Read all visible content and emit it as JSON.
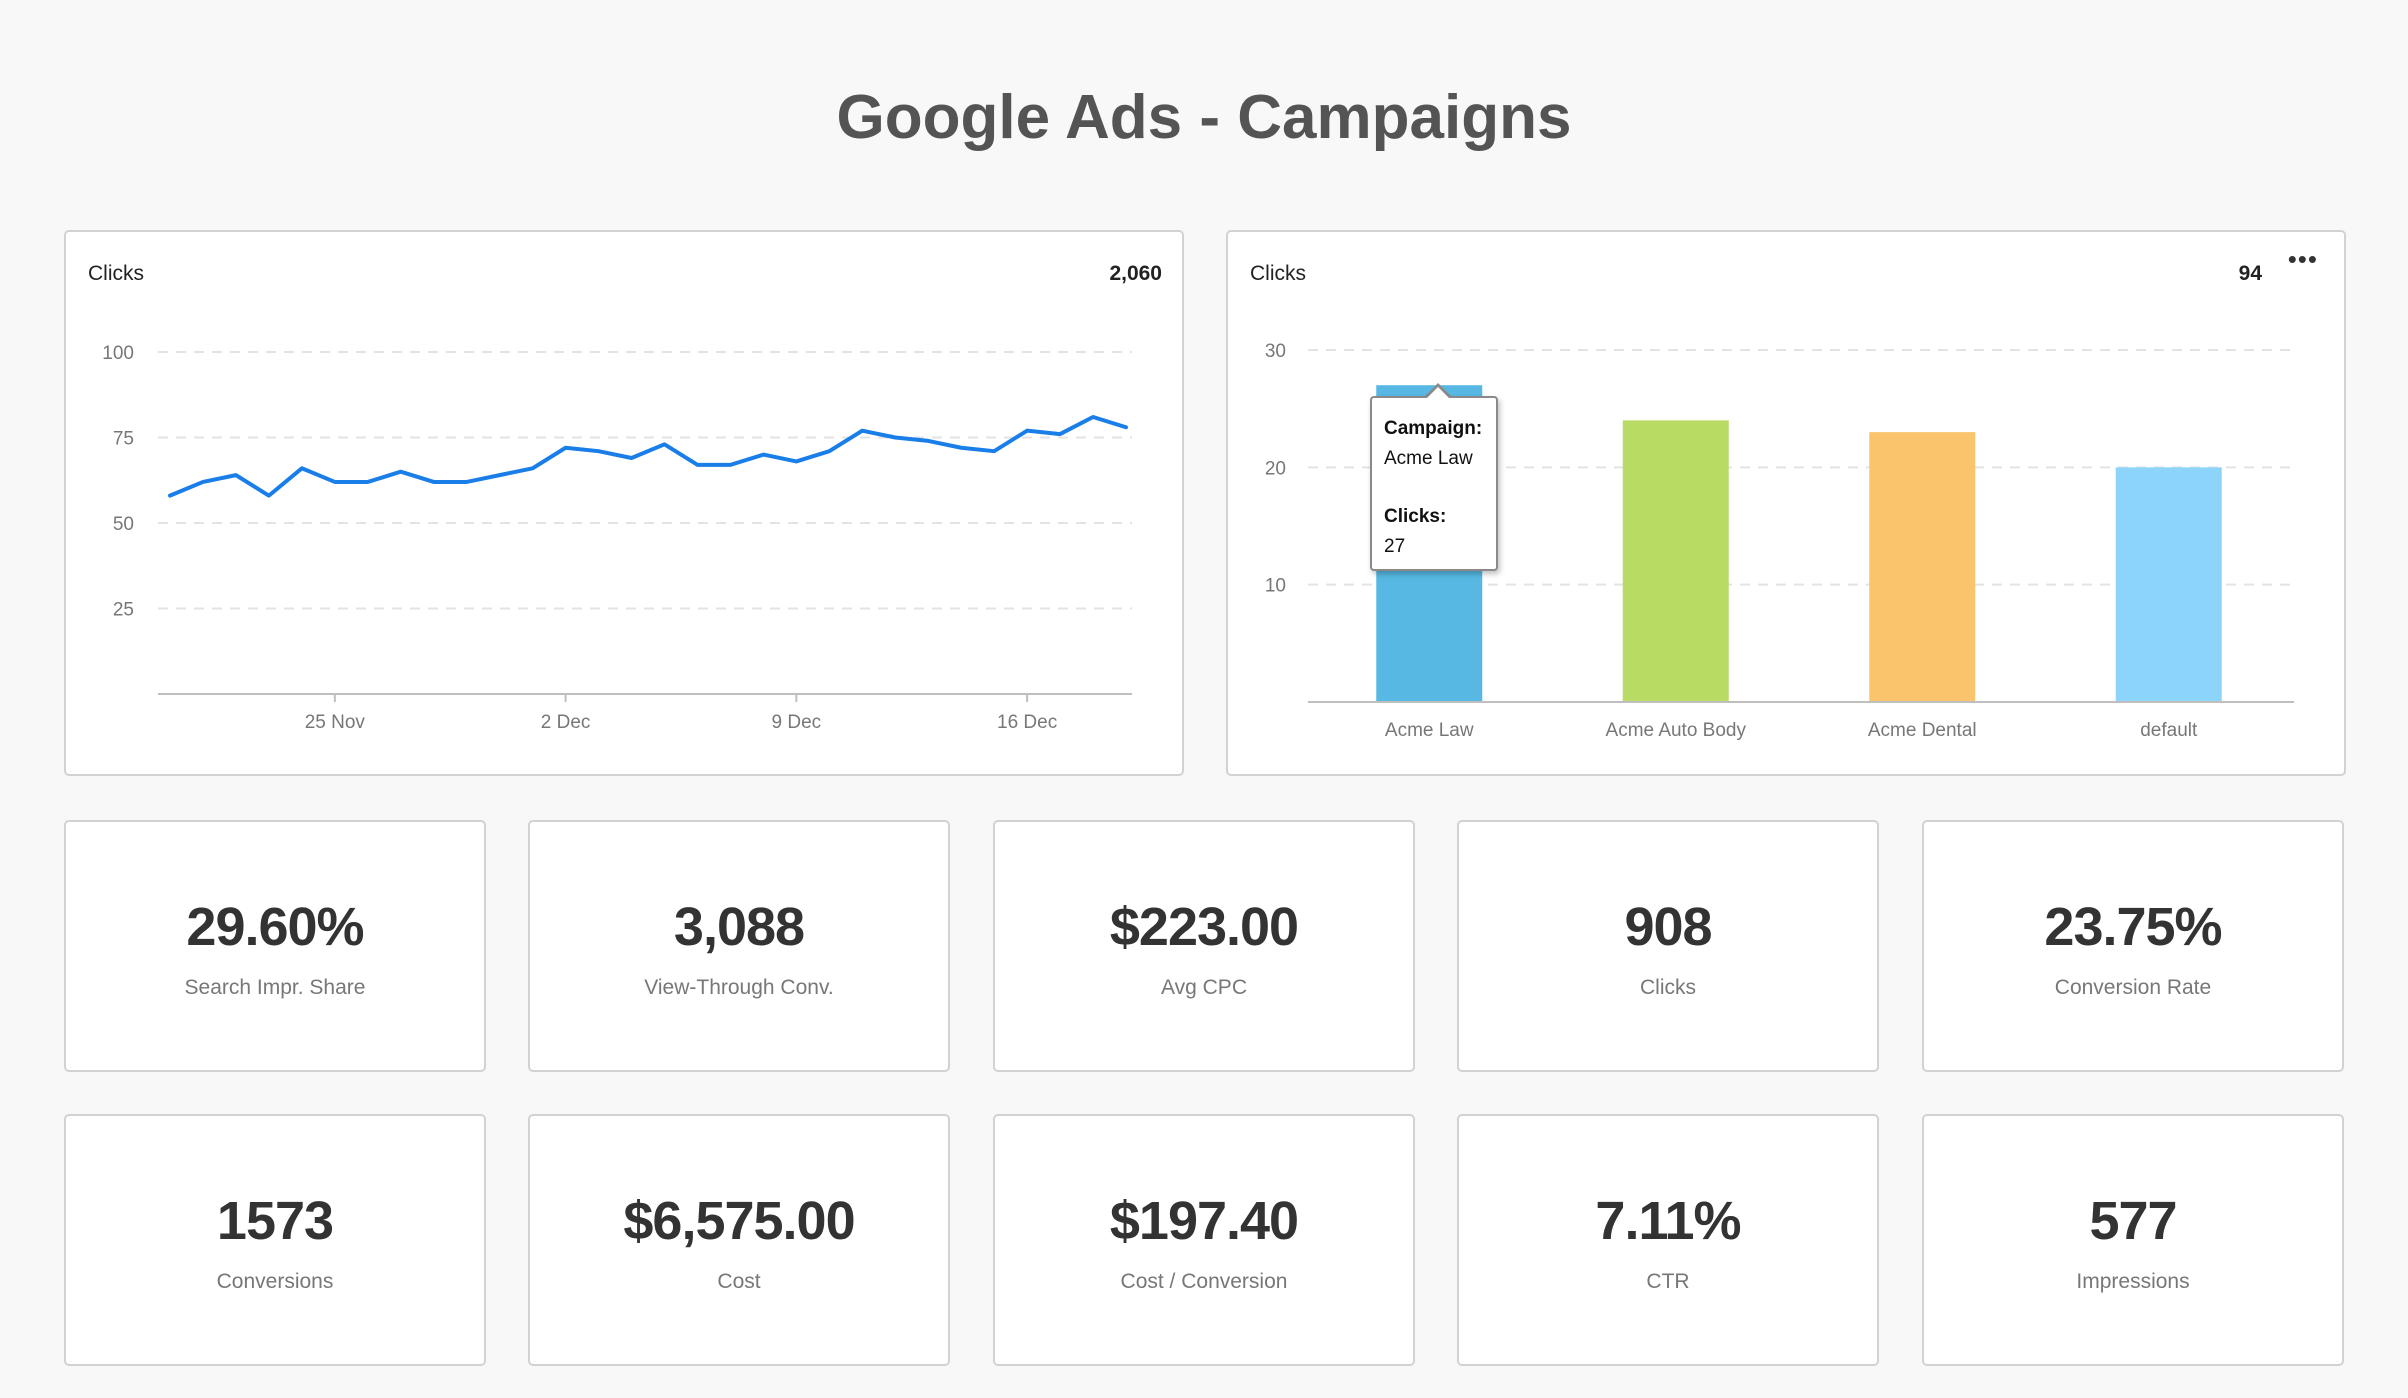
{
  "page": {
    "title": "Google Ads - Campaigns"
  },
  "colors": {
    "line": "#1a7ee8",
    "grid": "#e3e3e3",
    "axis": "#bfbfbf",
    "bars": [
      "#57b9e3",
      "#b7db63",
      "#f9c46c",
      "#8dd4fb"
    ]
  },
  "line_widget": {
    "title": "Clicks",
    "total": "2,060"
  },
  "bar_widget": {
    "title": "Clicks",
    "total": "94",
    "more_icon": "ellipsis-icon",
    "tooltip": {
      "campaign_key": "Campaign:",
      "campaign_value": "Acme Law",
      "clicks_key": "Clicks:",
      "clicks_value": "27"
    }
  },
  "chart_data": [
    {
      "type": "line",
      "title": "Clicks",
      "x": [
        "20 Nov",
        "21 Nov",
        "22 Nov",
        "23 Nov",
        "24 Nov",
        "25 Nov",
        "26 Nov",
        "27 Nov",
        "28 Nov",
        "29 Nov",
        "30 Nov",
        "1 Dec",
        "2 Dec",
        "3 Dec",
        "4 Dec",
        "5 Dec",
        "6 Dec",
        "7 Dec",
        "8 Dec",
        "9 Dec",
        "10 Dec",
        "11 Dec",
        "12 Dec",
        "13 Dec",
        "14 Dec",
        "15 Dec",
        "16 Dec",
        "17 Dec",
        "18 Dec",
        "19 Dec"
      ],
      "x_ticks": [
        "25 Nov",
        "2 Dec",
        "9 Dec",
        "16 Dec"
      ],
      "series": [
        {
          "values": [
            58,
            62,
            64,
            58,
            66,
            62,
            62,
            65,
            62,
            62,
            64,
            66,
            72,
            71,
            69,
            73,
            67,
            67,
            70,
            68,
            71,
            77,
            75,
            74,
            72,
            71,
            77,
            76,
            81,
            78
          ]
        }
      ],
      "y_ticks": [
        25,
        50,
        75,
        100
      ],
      "ylim": [
        0,
        100
      ],
      "grid": true
    },
    {
      "type": "bar",
      "title": "Clicks",
      "categories": [
        "Acme Law",
        "Acme Auto Body",
        "Acme Dental",
        "default"
      ],
      "values": [
        27,
        24,
        23,
        20
      ],
      "y_ticks": [
        10,
        20,
        30
      ],
      "ylim": [
        0,
        30
      ],
      "grid": true
    }
  ],
  "kpis": [
    {
      "value": "29.60%",
      "label": "Search Impr. Share"
    },
    {
      "value": "3,088",
      "label": "View-Through Conv."
    },
    {
      "value": "$223.00",
      "label": "Avg CPC"
    },
    {
      "value": "908",
      "label": "Clicks"
    },
    {
      "value": "23.75%",
      "label": "Conversion Rate"
    },
    {
      "value": "1573",
      "label": "Conversions"
    },
    {
      "value": "$6,575.00",
      "label": "Cost"
    },
    {
      "value": "$197.40",
      "label": "Cost / Conversion"
    },
    {
      "value": "7.11%",
      "label": "CTR"
    },
    {
      "value": "577",
      "label": "Impressions"
    }
  ]
}
